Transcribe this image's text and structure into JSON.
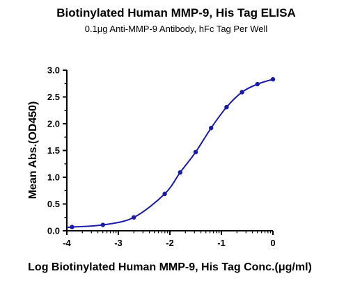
{
  "chart_data": {
    "type": "line",
    "title": "Biotinylated Human MMP-9, His Tag ELISA",
    "subtitle": "0.1μg Anti-MMP-9 Antibody, hFc Tag Per Well",
    "xlabel": "Log Biotinylated Human MMP-9, His Tag Conc.(μg/ml)",
    "ylabel": "Mean Abs.(OD450)",
    "xlim": [
      -4,
      0
    ],
    "ylim": [
      0,
      3.0
    ],
    "x_ticks": [
      "-4",
      "-3",
      "-2",
      "-1",
      "0"
    ],
    "y_ticks": [
      "0.0",
      "0.5",
      "1.0",
      "1.5",
      "2.0",
      "2.5",
      "3.0"
    ],
    "grid": false,
    "legend": "none",
    "series": [
      {
        "x": [
          -3.9,
          -3.3,
          -2.7,
          -2.1,
          -1.8,
          -1.5,
          -1.2,
          -0.9,
          -0.6,
          -0.3,
          0.0
        ],
        "values": [
          0.07,
          0.11,
          0.25,
          0.69,
          1.09,
          1.47,
          1.92,
          2.31,
          2.59,
          2.74,
          2.83
        ]
      }
    ],
    "colors": {
      "series": "#1a1aa6",
      "axis": "#000000"
    }
  }
}
